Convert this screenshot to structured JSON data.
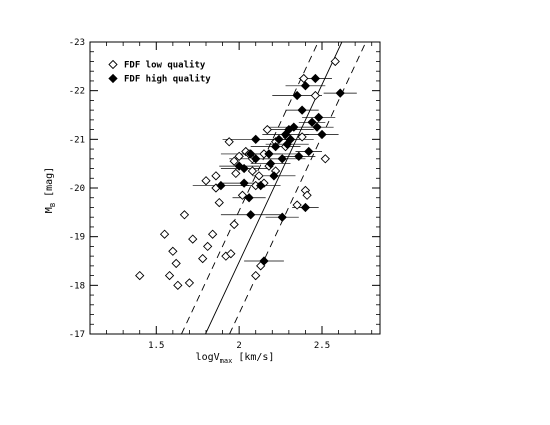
{
  "chart_data": {
    "type": "scatter",
    "title": "",
    "xlabel": {
      "main": "logV",
      "sub": "max",
      "unit": " [km/s]"
    },
    "ylabel": {
      "main": "M",
      "sub": "B",
      "unit": " [mag]"
    },
    "xlim": [
      1.1,
      2.85
    ],
    "ylim": [
      -17,
      -23
    ],
    "y_inverted": true,
    "x_ticks": [
      1.5,
      2,
      2.5
    ],
    "x_tick_labels": [
      "1.5",
      "2",
      "2.5"
    ],
    "y_ticks": [
      -17,
      -18,
      -19,
      -20,
      -21,
      -22,
      -23
    ],
    "y_tick_labels": [
      "-17",
      "-18",
      "-19",
      "-20",
      "-21",
      "-22",
      "-23"
    ],
    "grid": false,
    "legend_position": "top-left",
    "lines": [
      {
        "style": "solid",
        "x": [
          1.797,
          2.62
        ],
        "y": [
          -17,
          -23
        ]
      },
      {
        "style": "dashed",
        "x": [
          1.652,
          2.477
        ],
        "y": [
          -17,
          -23
        ]
      },
      {
        "style": "dashed",
        "x": [
          1.942,
          2.765
        ],
        "y": [
          -17,
          -23
        ]
      }
    ],
    "series": [
      {
        "name": "FDF low quality",
        "marker": "open-diamond",
        "points": [
          [
            1.4,
            -18.2
          ],
          [
            1.55,
            -19.05
          ],
          [
            1.58,
            -18.2
          ],
          [
            1.6,
            -18.7
          ],
          [
            1.62,
            -18.45
          ],
          [
            1.63,
            -18.0
          ],
          [
            1.67,
            -19.45
          ],
          [
            1.7,
            -18.05
          ],
          [
            1.72,
            -18.95
          ],
          [
            1.78,
            -18.55
          ],
          [
            1.8,
            -20.15
          ],
          [
            1.81,
            -18.8
          ],
          [
            1.84,
            -19.05
          ],
          [
            1.86,
            -20.25
          ],
          [
            1.86,
            -20.0
          ],
          [
            1.88,
            -19.7
          ],
          [
            1.92,
            -18.6
          ],
          [
            1.94,
            -20.95
          ],
          [
            1.95,
            -18.65
          ],
          [
            1.97,
            -19.25
          ],
          [
            1.97,
            -20.55
          ],
          [
            1.98,
            -20.3
          ],
          [
            2.0,
            -20.65
          ],
          [
            2.02,
            -19.85
          ],
          [
            2.04,
            -20.75
          ],
          [
            2.06,
            -20.7
          ],
          [
            2.08,
            -20.6
          ],
          [
            2.08,
            -20.35
          ],
          [
            2.1,
            -18.2
          ],
          [
            2.1,
            -20.05
          ],
          [
            2.12,
            -20.25
          ],
          [
            2.13,
            -18.4
          ],
          [
            2.15,
            -20.1
          ],
          [
            2.15,
            -20.7
          ],
          [
            2.17,
            -21.2
          ],
          [
            2.18,
            -20.45
          ],
          [
            2.22,
            -20.95
          ],
          [
            2.22,
            -20.35
          ],
          [
            2.28,
            -20.85
          ],
          [
            2.29,
            -21.05
          ],
          [
            2.35,
            -19.65
          ],
          [
            2.38,
            -21.05
          ],
          [
            2.39,
            -22.25
          ],
          [
            2.4,
            -19.95
          ],
          [
            2.41,
            -19.85
          ],
          [
            2.46,
            -21.9
          ],
          [
            2.52,
            -20.6
          ],
          [
            2.58,
            -22.6
          ]
        ]
      },
      {
        "name": "FDF high quality",
        "marker": "filled-diamond",
        "points": [
          [
            1.89,
            -20.05,
            0.17
          ],
          [
            2.0,
            -20.45,
            0.12
          ],
          [
            2.03,
            -20.4,
            0.14
          ],
          [
            2.03,
            -20.1,
            0.13
          ],
          [
            2.06,
            -19.8,
            0.1
          ],
          [
            2.07,
            -19.45,
            0.18
          ],
          [
            2.1,
            -21.0,
            0.2
          ],
          [
            2.07,
            -20.7,
            0.18
          ],
          [
            2.1,
            -20.6,
            0.16
          ],
          [
            2.13,
            -20.05,
            0.12
          ],
          [
            2.15,
            -18.5,
            0.12
          ],
          [
            2.18,
            -20.7,
            0.18
          ],
          [
            2.19,
            -20.5,
            0.12
          ],
          [
            2.21,
            -20.25,
            0.13
          ],
          [
            2.22,
            -20.85,
            0.15
          ],
          [
            2.24,
            -21.0,
            0.14
          ],
          [
            2.26,
            -20.6,
            0.14
          ],
          [
            2.26,
            -19.4,
            0.1
          ],
          [
            2.28,
            -21.1,
            0.14
          ],
          [
            2.29,
            -20.9,
            0.13
          ],
          [
            2.3,
            -21.2,
            0.15
          ],
          [
            2.31,
            -21.0,
            0.14
          ],
          [
            2.33,
            -21.25,
            0.15
          ],
          [
            2.35,
            -21.9,
            0.15
          ],
          [
            2.36,
            -20.65,
            0.1
          ],
          [
            2.38,
            -21.6,
            0.1
          ],
          [
            2.4,
            -22.1,
            0.12
          ],
          [
            2.4,
            -19.6,
            0.08
          ],
          [
            2.42,
            -20.75,
            0.08
          ],
          [
            2.44,
            -21.35,
            0.08
          ],
          [
            2.46,
            -22.25,
            0.1
          ],
          [
            2.47,
            -21.25,
            0.1
          ],
          [
            2.48,
            -21.45,
            0.1
          ],
          [
            2.5,
            -21.1,
            0.1
          ],
          [
            2.61,
            -21.95,
            0.1
          ]
        ]
      }
    ]
  }
}
